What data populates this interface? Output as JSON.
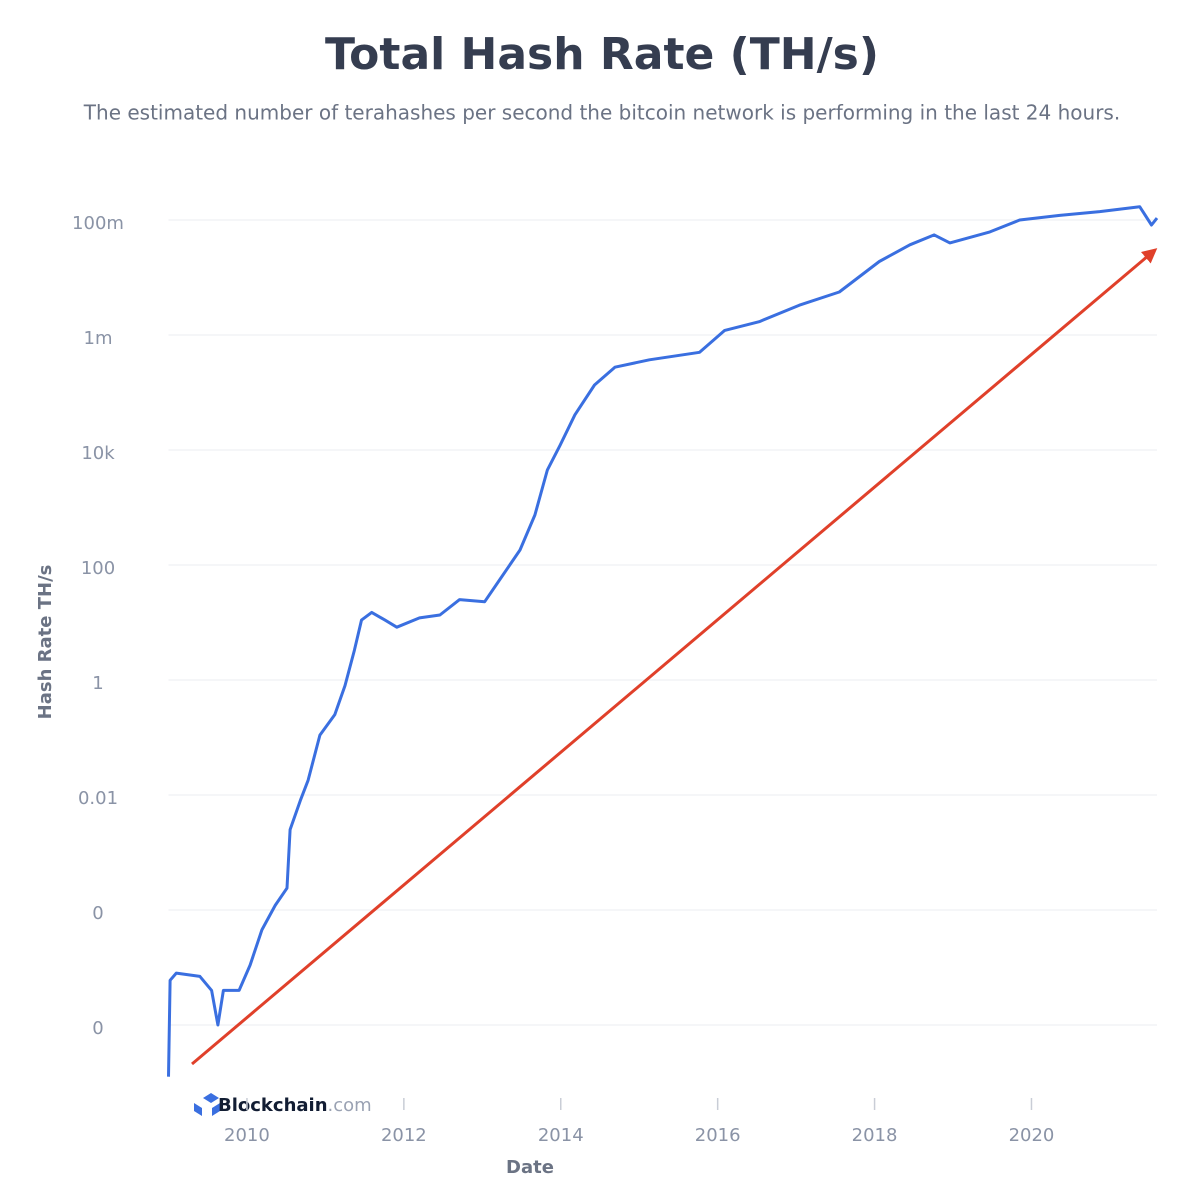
{
  "chart_data": {
    "type": "line",
    "title": "Total Hash Rate (TH/s)",
    "subtitle": "The estimated number of terahashes per second the bitcoin network is performing in the last 24 hours.",
    "x_label": "Date",
    "y_label": "Hash Rate TH/s",
    "logo": [
      "Blockchain",
      ".com"
    ],
    "log_scale": true,
    "grid": true,
    "xlim": [
      2009,
      2021.6
    ],
    "xticks": [
      2010,
      2012,
      2014,
      2016,
      2018,
      2020
    ],
    "ylim": [
      1e-07,
      1000000000.0
    ],
    "yticks": [
      {
        "value": 1e-06,
        "label": "0"
      },
      {
        "value": 0.0001,
        "label": "0"
      },
      0.01,
      1,
      100,
      {
        "value": 10000,
        "label": "10k"
      },
      {
        "value": 1000000,
        "label": "1m"
      },
      {
        "value": 100000000,
        "label": "100m"
      }
    ],
    "series": [
      {
        "name": "Hash Rate",
        "color": "#3a6fe0",
        "x": [
          2009.0,
          2009.02,
          2009.1,
          2009.4,
          2009.55,
          2009.63,
          2009.7,
          2009.9,
          2010.04,
          2010.19,
          2010.36,
          2010.51,
          2010.55,
          2010.68,
          2010.78,
          2010.93,
          2011.12,
          2011.25,
          2011.37,
          2011.46,
          2011.59,
          2011.76,
          2011.91,
          2012.2,
          2012.46,
          2012.71,
          2013.03,
          2013.22,
          2013.48,
          2013.67,
          2013.83,
          2013.99,
          2014.18,
          2014.43,
          2014.69,
          2015.13,
          2015.77,
          2016.09,
          2016.53,
          2017.04,
          2017.55,
          2018.06,
          2018.45,
          2018.76,
          2018.96,
          2019.47,
          2019.85,
          2020.36,
          2020.87,
          2021.38,
          2021.53,
          2021.6
        ],
        "values": [
          1.26e-07,
          6e-06,
          8e-06,
          7e-06,
          4e-06,
          1e-06,
          4e-06,
          4e-06,
          1.1e-05,
          4.5e-05,
          0.00012,
          0.00024,
          0.0025,
          0.008,
          0.018,
          0.11,
          0.25,
          0.8,
          3.3,
          11,
          15,
          11,
          8.3,
          12,
          13.5,
          25,
          23,
          55,
          182,
          740,
          4500,
          12000,
          41000,
          135000,
          275000,
          370000,
          500000,
          1200000,
          1700000,
          3300000,
          5600000,
          19000000,
          37000000,
          55000000,
          40000000,
          62000000,
          100000000,
          120000000,
          140000000,
          170000000,
          82000000,
          108000000
        ]
      }
    ]
  }
}
